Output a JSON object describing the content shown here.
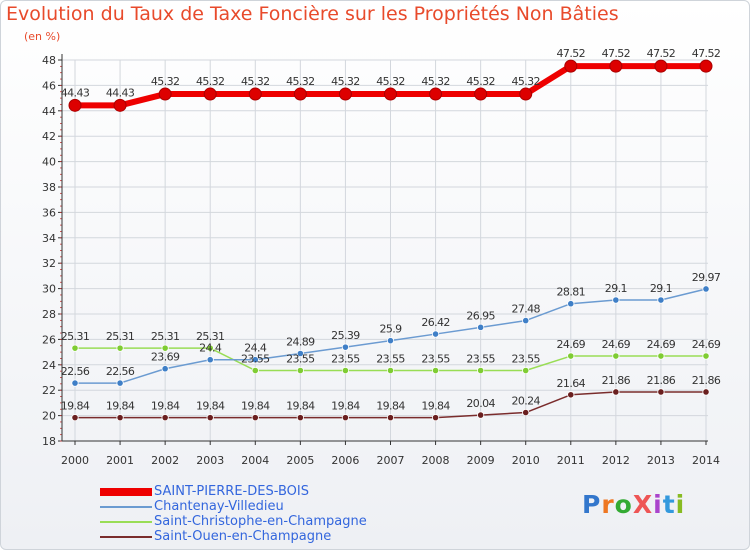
{
  "title": "Evolution du Taux de Taxe Foncière sur les Propriétés Non Bâties",
  "unit": "(en %)",
  "brand": "ProXiti",
  "colors": {
    "title": "#e84a2b",
    "grid": "#d3d7dd",
    "axis": "#333333",
    "text": "#333333",
    "legend_text": "#3366dd"
  },
  "chart_data": {
    "type": "line",
    "x": [
      "2000",
      "2001",
      "2002",
      "2003",
      "2004",
      "2005",
      "2006",
      "2007",
      "2008",
      "2009",
      "2010",
      "2011",
      "2012",
      "2013",
      "2014"
    ],
    "ylim": [
      18,
      48
    ],
    "yticks": [
      18,
      20,
      22,
      24,
      26,
      28,
      30,
      32,
      34,
      36,
      38,
      40,
      42,
      44,
      46,
      48
    ],
    "grid": true,
    "legend_position": "bottom-left",
    "series": [
      {
        "name": "SAINT-PIERRE-DES-BOIS",
        "color": "#ee0000",
        "marker_color": "#dd0000",
        "width": 6,
        "values": [
          44.43,
          44.43,
          45.32,
          45.32,
          45.32,
          45.32,
          45.32,
          45.32,
          45.32,
          45.32,
          45.32,
          47.52,
          47.52,
          47.52,
          47.52
        ],
        "labels": [
          "44.43",
          "44.43",
          "45.32",
          "45.32",
          "45.32",
          "45.32",
          "45.32",
          "45.32",
          "45.32",
          "45.32",
          "45.32",
          "47.52",
          "47.52",
          "47.52",
          "47.52"
        ]
      },
      {
        "name": "Chantenay-Villedieu",
        "color": "#6b9bd1",
        "marker_color": "#3f7fc7",
        "width": 1.5,
        "values": [
          22.56,
          22.56,
          23.69,
          24.4,
          24.4,
          24.89,
          25.39,
          25.9,
          26.42,
          26.95,
          27.48,
          28.81,
          29.1,
          29.1,
          29.97
        ],
        "labels": [
          "22.56",
          "22.56",
          "23.69",
          "24.4",
          "24.4",
          "24.89",
          "25.39",
          "25.9",
          "26.42",
          "26.95",
          "27.48",
          "28.81",
          "29.1",
          "29.1",
          "29.97"
        ]
      },
      {
        "name": "Saint-Christophe-en-Champagne",
        "color": "#99dd55",
        "marker_color": "#7fcc33",
        "width": 1.5,
        "values": [
          25.31,
          25.31,
          25.31,
          25.31,
          23.55,
          23.55,
          23.55,
          23.55,
          23.55,
          23.55,
          23.55,
          24.69,
          24.69,
          24.69,
          24.69
        ],
        "labels": [
          "25.31",
          "25.31",
          "25.31",
          "25.31",
          "23.55",
          "23.55",
          "23.55",
          "23.55",
          "23.55",
          "23.55",
          "23.55",
          "24.69",
          "24.69",
          "24.69",
          "24.69"
        ]
      },
      {
        "name": "Saint-Ouen-en-Champagne",
        "color": "#7a2c2c",
        "marker_color": "#6a1f1f",
        "width": 1.5,
        "values": [
          19.84,
          19.84,
          19.84,
          19.84,
          19.84,
          19.84,
          19.84,
          19.84,
          19.84,
          20.04,
          20.24,
          21.64,
          21.86,
          21.86,
          21.86
        ],
        "labels": [
          "19.84",
          "19.84",
          "19.84",
          "19.84",
          "19.84",
          "19.84",
          "19.84",
          "19.84",
          "19.84",
          "20.04",
          "20.24",
          "21.64",
          "21.86",
          "21.86",
          "21.86"
        ]
      }
    ]
  }
}
